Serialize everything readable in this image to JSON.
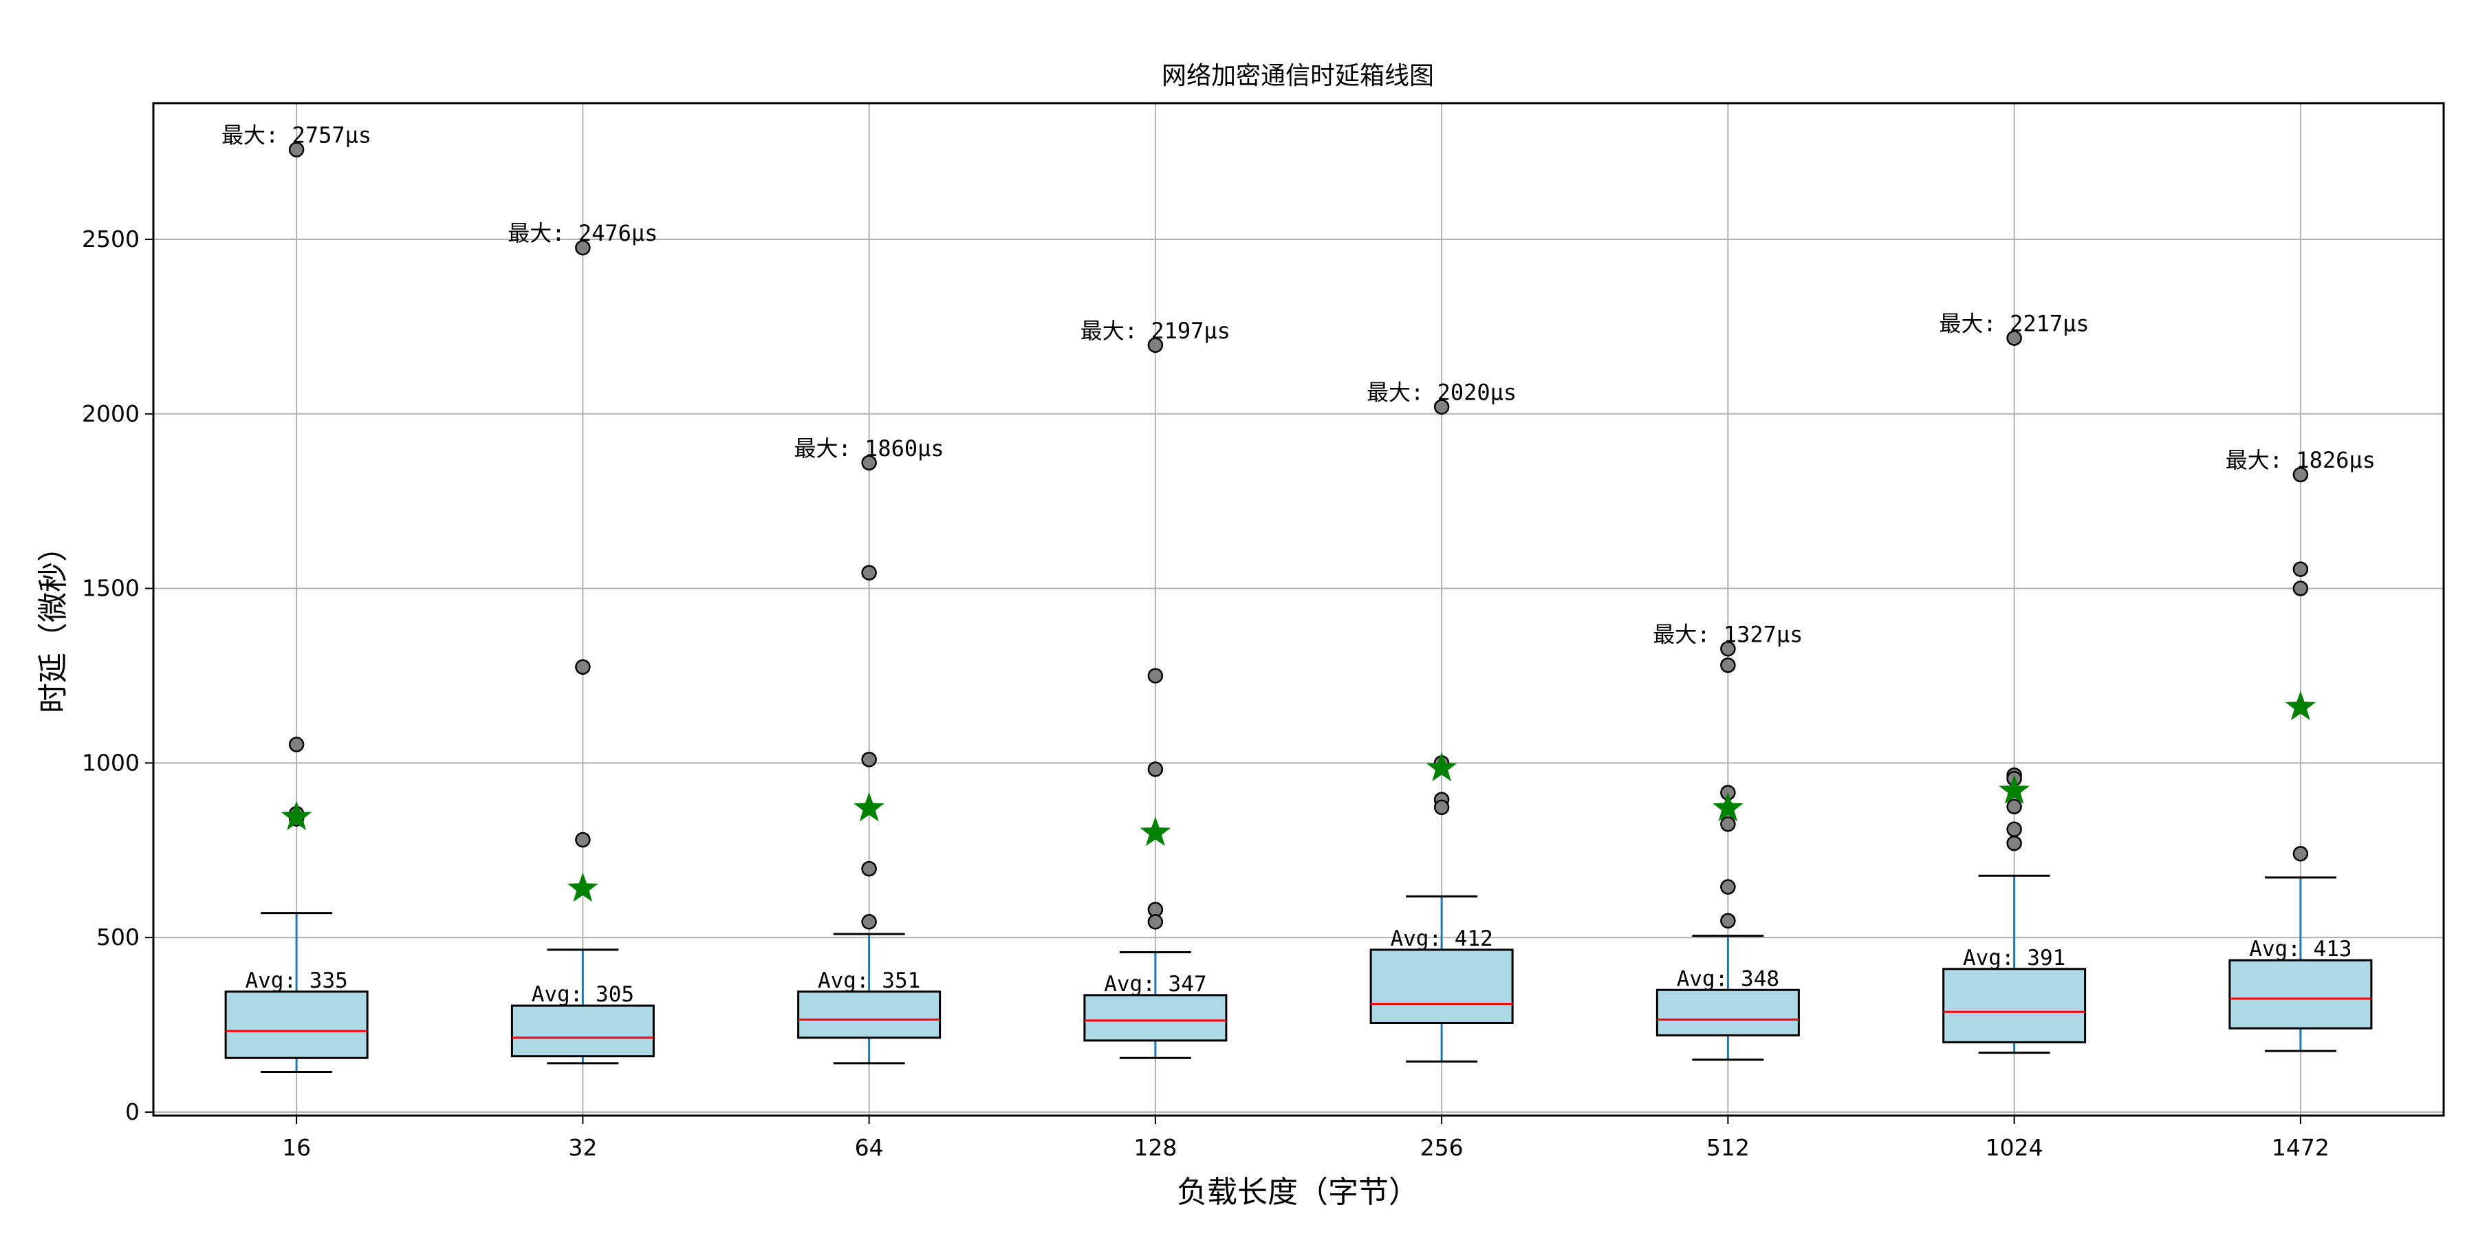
{
  "chart_data": {
    "type": "box",
    "title": "网络加密通信时延箱线图",
    "xlabel": "负载长度（字节）",
    "ylabel": "时延（微秒）",
    "ylim": [
      -10,
      2890
    ],
    "yticks": [
      0,
      500,
      1000,
      1500,
      2000,
      2500
    ],
    "grid": true,
    "colors": {
      "box_fill": "#add8e6",
      "box_edge": "#000000",
      "median": "#ff0000",
      "whisker": "#1f77b4",
      "flier": "#808080",
      "mean_marker": "#008000",
      "grid": "#b0b0b0"
    },
    "categories": [
      "16",
      "32",
      "64",
      "128",
      "256",
      "512",
      "1024",
      "1472"
    ],
    "boxes": [
      {
        "category": "16",
        "whisker_low": 115,
        "q1": 155,
        "median": 232,
        "q3": 345,
        "whisker_high": 570,
        "mean": 845,
        "fliers": [
          2757,
          1053,
          855,
          840
        ],
        "avg_label": "Avg: 335",
        "max_label": "最大: 2757μs"
      },
      {
        "category": "32",
        "whisker_low": 140,
        "q1": 160,
        "median": 213,
        "q3": 305,
        "whisker_high": 465,
        "mean": 640,
        "fliers": [
          2476,
          1275,
          780
        ],
        "avg_label": "Avg: 305",
        "max_label": "最大: 2476μs"
      },
      {
        "category": "64",
        "whisker_low": 140,
        "q1": 213,
        "median": 265,
        "q3": 345,
        "whisker_high": 510,
        "mean": 870,
        "fliers": [
          1860,
          1545,
          1010,
          697,
          545
        ],
        "avg_label": "Avg: 351",
        "max_label": "最大: 1860μs"
      },
      {
        "category": "128",
        "whisker_low": 155,
        "q1": 205,
        "median": 262,
        "q3": 335,
        "whisker_high": 458,
        "mean": 800,
        "fliers": [
          2197,
          1250,
          982,
          580,
          545
        ],
        "avg_label": "Avg: 347",
        "max_label": "最大: 2197μs"
      },
      {
        "category": "256",
        "whisker_low": 145,
        "q1": 255,
        "median": 310,
        "q3": 465,
        "whisker_high": 618,
        "mean": 985,
        "fliers": [
          2020,
          1000,
          895,
          873
        ],
        "avg_label": "Avg: 412",
        "max_label": "最大: 2020μs"
      },
      {
        "category": "512",
        "whisker_low": 150,
        "q1": 220,
        "median": 265,
        "q3": 350,
        "whisker_high": 505,
        "mean": 870,
        "fliers": [
          1327,
          1280,
          915,
          825,
          645,
          548
        ],
        "avg_label": "Avg: 348",
        "max_label": "最大: 1327μs"
      },
      {
        "category": "1024",
        "whisker_low": 170,
        "q1": 200,
        "median": 287,
        "q3": 410,
        "whisker_high": 677,
        "mean": 920,
        "fliers": [
          2217,
          965,
          955,
          875,
          810,
          770
        ],
        "avg_label": "Avg: 391",
        "max_label": "最大: 2217μs"
      },
      {
        "category": "1472",
        "whisker_low": 175,
        "q1": 240,
        "median": 325,
        "q3": 435,
        "whisker_high": 672,
        "mean": 1160,
        "fliers": [
          1826,
          1555,
          1500,
          740
        ],
        "avg_label": "Avg: 413",
        "max_label": "最大: 1826μs"
      }
    ]
  }
}
